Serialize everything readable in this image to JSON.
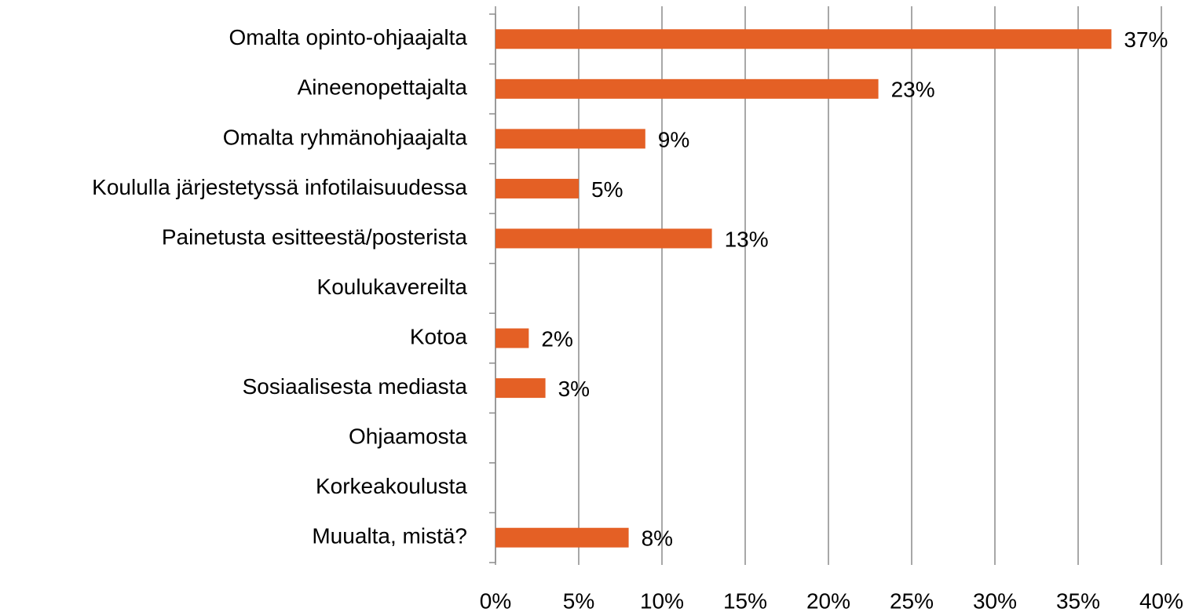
{
  "chart_data": {
    "type": "barh",
    "categories": [
      "Omalta opinto-ohjaajalta",
      "Aineenopettajalta",
      "Omalta ryhmänohjaajalta",
      "Koululla järjestetyssä infotilaisuudessa",
      "Painetusta esitteestä/posterista",
      "Koulukavereilta",
      "Kotoa",
      "Sosiaalisesta mediasta",
      "Ohjaamosta",
      "Korkeakoulusta",
      "Muualta, mistä?"
    ],
    "values": [
      37,
      23,
      9,
      5,
      13,
      0,
      2,
      3,
      0,
      0,
      8
    ],
    "value_labels": [
      "37%",
      "23%",
      "9%",
      "5%",
      "13%",
      null,
      "2%",
      "3%",
      null,
      null,
      "8%"
    ],
    "color": "#e46025",
    "xlim": [
      0,
      40
    ],
    "xticks": [
      {
        "value": 0,
        "label": "0%"
      },
      {
        "value": 5,
        "label": "5%"
      },
      {
        "value": 10,
        "label": "10%"
      },
      {
        "value": 15,
        "label": "15%"
      },
      {
        "value": 20,
        "label": "20%"
      },
      {
        "value": 25,
        "label": "25%"
      },
      {
        "value": 30,
        "label": "30%"
      },
      {
        "value": 35,
        "label": "35%"
      },
      {
        "value": 40,
        "label": "40%"
      }
    ],
    "grid": true
  }
}
